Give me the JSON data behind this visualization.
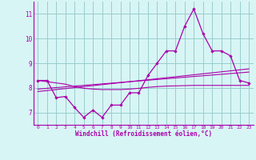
{
  "xlabel": "Windchill (Refroidissement éolien,°C)",
  "background_color": "#d8f5f5",
  "grid_color": "#99cccc",
  "line_color": "#aa00aa",
  "spine_color": "#aa00aa",
  "x_values": [
    0,
    1,
    2,
    3,
    4,
    5,
    6,
    7,
    8,
    9,
    10,
    11,
    12,
    13,
    14,
    15,
    16,
    17,
    18,
    19,
    20,
    21,
    22,
    23
  ],
  "main_line": [
    8.3,
    8.3,
    7.6,
    7.65,
    7.2,
    6.8,
    7.1,
    6.8,
    7.3,
    7.3,
    7.8,
    7.8,
    8.5,
    9.0,
    9.5,
    9.5,
    10.5,
    11.2,
    10.2,
    9.5,
    9.5,
    9.3,
    8.3,
    8.2
  ],
  "reg_line1": [
    7.95,
    7.98,
    8.01,
    8.04,
    8.07,
    8.1,
    8.13,
    8.16,
    8.19,
    8.22,
    8.25,
    8.28,
    8.31,
    8.34,
    8.37,
    8.4,
    8.43,
    8.46,
    8.49,
    8.52,
    8.55,
    8.58,
    8.61,
    8.64
  ],
  "reg_line2": [
    7.85,
    7.89,
    7.93,
    7.97,
    8.01,
    8.05,
    8.09,
    8.13,
    8.17,
    8.21,
    8.25,
    8.29,
    8.33,
    8.37,
    8.41,
    8.45,
    8.49,
    8.53,
    8.57,
    8.61,
    8.65,
    8.69,
    8.73,
    8.77
  ],
  "flat_line": [
    8.3,
    8.25,
    8.2,
    8.15,
    8.05,
    7.98,
    7.95,
    7.93,
    7.93,
    7.93,
    7.95,
    7.98,
    8.02,
    8.05,
    8.07,
    8.08,
    8.09,
    8.1,
    8.1,
    8.1,
    8.1,
    8.1,
    8.1,
    8.1
  ],
  "ylim": [
    6.5,
    11.5
  ],
  "yticks": [
    7,
    8,
    9,
    10,
    11
  ],
  "xtick_labels": [
    "0",
    "1",
    "2",
    "3",
    "4",
    "5",
    "6",
    "7",
    "8",
    "9",
    "10",
    "11",
    "12",
    "13",
    "14",
    "15",
    "16",
    "17",
    "18",
    "19",
    "20",
    "21",
    "22",
    "23"
  ]
}
